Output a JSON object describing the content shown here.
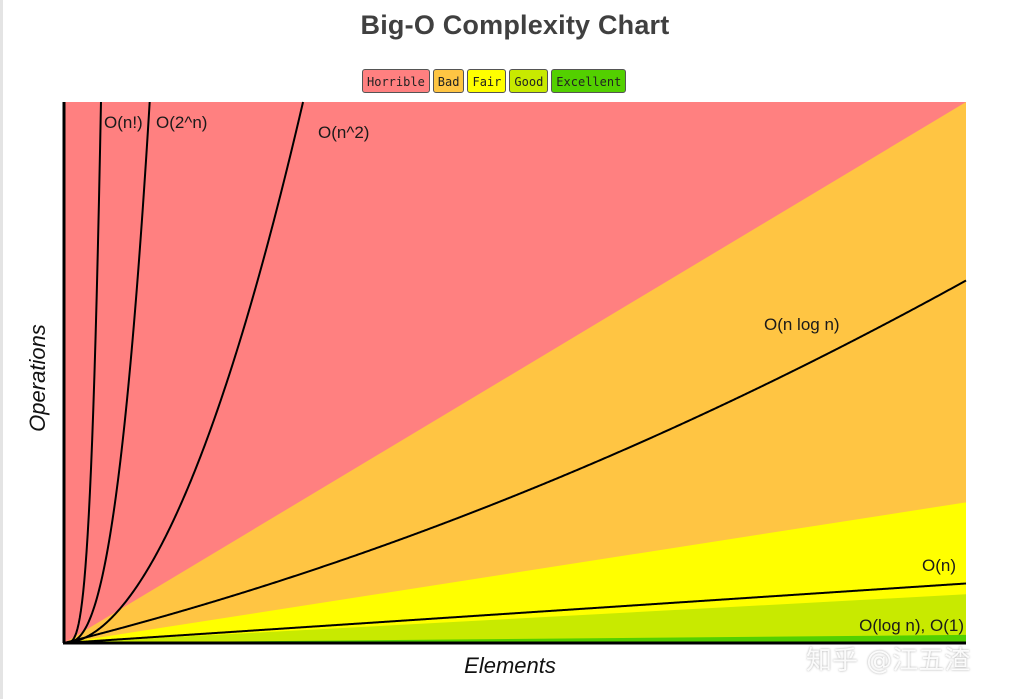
{
  "chart_data": {
    "type": "area",
    "title": "Big-O Complexity Chart",
    "xlabel": "Elements",
    "ylabel": "Operations",
    "x_range": [
      0,
      100
    ],
    "y_range": [
      0,
      1000
    ],
    "grid": false,
    "legend_position": "top-center",
    "legend": [
      {
        "label": "Horrible",
        "color": "#ff8080"
      },
      {
        "label": "Bad",
        "color": "#ffc543"
      },
      {
        "label": "Fair",
        "color": "#ffff00"
      },
      {
        "label": "Good",
        "color": "#c8ea00"
      },
      {
        "label": "Excellent",
        "color": "#53d000"
      }
    ],
    "regions": [
      {
        "name": "Horrible",
        "color": "#ff8080",
        "upper": 1000
      },
      {
        "name": "Bad",
        "color": "#ffc543",
        "upper_slope": 10.0
      },
      {
        "name": "Fair",
        "color": "#ffff00",
        "upper_slope": 2.6
      },
      {
        "name": "Good",
        "color": "#c8ea00",
        "upper_slope": 0.9
      },
      {
        "name": "Excellent",
        "color": "#53d000",
        "upper_slope": 0.15
      }
    ],
    "series": [
      {
        "name": "O(n!)",
        "label": "O(n!)",
        "kind": "factorial"
      },
      {
        "name": "O(2^n)",
        "label": "O(2^n)",
        "kind": "exponential"
      },
      {
        "name": "O(n^2)",
        "label": "O(n^2)",
        "kind": "quadratic"
      },
      {
        "name": "O(n log n)",
        "label": "O(n log n)",
        "kind": "nlogn"
      },
      {
        "name": "O(n)",
        "label": "O(n)",
        "kind": "linear"
      },
      {
        "name": "O(log n), O(1)",
        "label": "O(log n), O(1)",
        "kind": "constant"
      }
    ]
  },
  "watermark": "知乎 @江五渣"
}
